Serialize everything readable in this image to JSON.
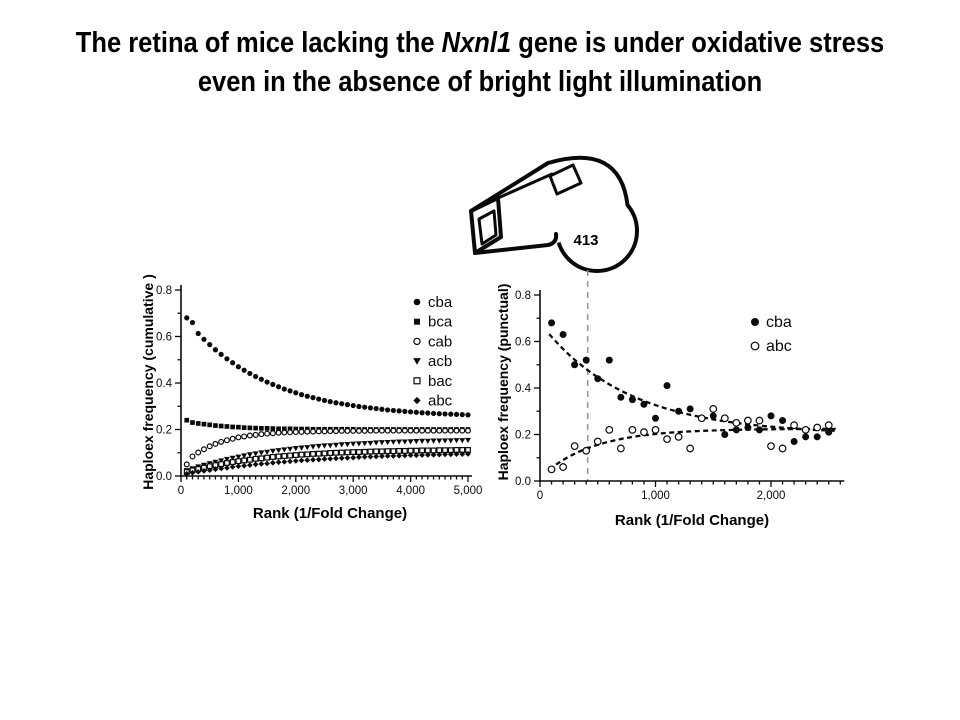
{
  "slide": {
    "title": {
      "pre_italic": "The retina of mice lacking the ",
      "italic": "Nxnl1",
      "post_italic": " gene is under oxidative stress",
      "line2": "even in the absence of bright light illumination"
    }
  },
  "whistle": {
    "label": "413"
  },
  "colors": {
    "ink": "#0a0a0a",
    "guide_line": "#9a9a9a",
    "background": "#ffffff"
  },
  "chart_data": [
    {
      "type": "scatter",
      "title": "",
      "xlabel": "Rank (1/Fold Change)",
      "ylabel": "Haploex frequency (cumulative )",
      "xlim": [
        0,
        5000
      ],
      "ylim": [
        0,
        0.8
      ],
      "grid": false,
      "legend_position": "upper right",
      "xticks": {
        "major": [
          0,
          1000,
          2000,
          3000,
          4000,
          5000
        ],
        "labels": [
          "0",
          "1,000",
          "2,000",
          "3,000",
          "4,000",
          "5,000"
        ],
        "minor_step": 100
      },
      "yticks": {
        "major": [
          0,
          0.2,
          0.4,
          0.6,
          0.8
        ],
        "labels": [
          "0.0",
          "0.2",
          "0.4",
          "0.6",
          "0.8"
        ],
        "minor_step": 0.1
      },
      "x_start": 100,
      "x_step": 100,
      "series": [
        {
          "name": "cba",
          "marker": "circle-filled",
          "values": [
            0.68,
            0.66,
            0.613,
            0.588,
            0.565,
            0.543,
            0.523,
            0.504,
            0.487,
            0.47,
            0.455,
            0.441,
            0.428,
            0.416,
            0.404,
            0.394,
            0.384,
            0.374,
            0.366,
            0.358,
            0.35,
            0.343,
            0.337,
            0.331,
            0.325,
            0.32,
            0.315,
            0.311,
            0.307,
            0.303,
            0.299,
            0.296,
            0.293,
            0.29,
            0.287,
            0.284,
            0.282,
            0.28,
            0.278,
            0.276,
            0.274,
            0.272,
            0.271,
            0.269,
            0.268,
            0.267,
            0.266,
            0.265,
            0.264,
            0.263
          ]
        },
        {
          "name": "bca",
          "marker": "square-filled",
          "values": [
            0.24,
            0.23,
            0.226,
            0.223,
            0.22,
            0.217,
            0.215,
            0.213,
            0.211,
            0.21,
            0.208,
            0.207,
            0.206,
            0.205,
            0.205,
            0.204,
            0.203,
            0.203,
            0.203,
            0.202,
            0.202,
            0.202,
            0.201,
            0.201,
            0.201,
            0.201,
            0.201,
            0.201,
            0.201,
            0.201,
            0.2,
            0.2,
            0.2,
            0.2,
            0.2,
            0.2,
            0.2,
            0.2,
            0.2,
            0.2,
            0.2,
            0.2,
            0.2,
            0.2,
            0.2,
            0.2,
            0.2,
            0.2,
            0.2,
            0.2
          ]
        },
        {
          "name": "cab",
          "marker": "circle-open",
          "values": [
            0.05,
            0.084,
            0.101,
            0.115,
            0.128,
            0.138,
            0.147,
            0.154,
            0.16,
            0.166,
            0.17,
            0.174,
            0.177,
            0.18,
            0.182,
            0.184,
            0.186,
            0.187,
            0.188,
            0.189,
            0.19,
            0.191,
            0.191,
            0.192,
            0.192,
            0.193,
            0.193,
            0.194,
            0.194,
            0.194,
            0.194,
            0.194,
            0.195,
            0.195,
            0.195,
            0.195,
            0.195,
            0.195,
            0.195,
            0.195,
            0.195,
            0.195,
            0.195,
            0.195,
            0.195,
            0.195,
            0.195,
            0.195,
            0.195,
            0.195
          ]
        },
        {
          "name": "acb",
          "marker": "triangle-down-filled",
          "values": [
            0.024,
            0.032,
            0.04,
            0.047,
            0.054,
            0.06,
            0.066,
            0.072,
            0.077,
            0.082,
            0.087,
            0.092,
            0.096,
            0.1,
            0.103,
            0.107,
            0.11,
            0.113,
            0.116,
            0.119,
            0.121,
            0.123,
            0.126,
            0.128,
            0.13,
            0.131,
            0.133,
            0.135,
            0.136,
            0.138,
            0.139,
            0.14,
            0.141,
            0.143,
            0.144,
            0.145,
            0.146,
            0.147,
            0.147,
            0.148,
            0.149,
            0.15,
            0.15,
            0.151,
            0.151,
            0.152,
            0.152,
            0.153,
            0.153,
            0.154
          ]
        },
        {
          "name": "bac",
          "marker": "square-open",
          "values": [
            0.017,
            0.024,
            0.03,
            0.036,
            0.042,
            0.047,
            0.051,
            0.056,
            0.06,
            0.064,
            0.067,
            0.07,
            0.074,
            0.076,
            0.079,
            0.082,
            0.084,
            0.086,
            0.088,
            0.09,
            0.092,
            0.093,
            0.095,
            0.096,
            0.097,
            0.099,
            0.1,
            0.101,
            0.102,
            0.103,
            0.103,
            0.104,
            0.105,
            0.106,
            0.106,
            0.107,
            0.107,
            0.108,
            0.108,
            0.109,
            0.109,
            0.11,
            0.11,
            0.11,
            0.111,
            0.111,
            0.111,
            0.112,
            0.112,
            0.112
          ]
        },
        {
          "name": "abc",
          "marker": "diamond-filled",
          "values": [
            0.009,
            0.014,
            0.018,
            0.022,
            0.025,
            0.029,
            0.032,
            0.035,
            0.039,
            0.042,
            0.044,
            0.047,
            0.05,
            0.052,
            0.054,
            0.057,
            0.059,
            0.061,
            0.063,
            0.065,
            0.067,
            0.068,
            0.07,
            0.071,
            0.073,
            0.074,
            0.076,
            0.077,
            0.078,
            0.079,
            0.081,
            0.082,
            0.083,
            0.084,
            0.085,
            0.086,
            0.086,
            0.087,
            0.088,
            0.089,
            0.089,
            0.09,
            0.091,
            0.091,
            0.092,
            0.093,
            0.093,
            0.094,
            0.094,
            0.095
          ]
        }
      ]
    },
    {
      "type": "scatter",
      "title": "",
      "xlabel": "Rank (1/Fold Change)",
      "ylabel": "Haploex frequency (punctual)",
      "xlim": [
        0,
        2600
      ],
      "ylim": [
        0,
        0.8
      ],
      "grid": false,
      "legend_position": "upper right",
      "xticks": {
        "major": [
          0,
          1000,
          2000
        ],
        "labels": [
          "0",
          "1,000",
          "2,000"
        ],
        "minor_step": 100
      },
      "yticks": {
        "major": [
          0,
          0.2,
          0.4,
          0.6,
          0.8
        ],
        "labels": [
          "0.0",
          "0.2",
          "0.4",
          "0.6",
          "0.8"
        ],
        "minor_step": 0.1
      },
      "x_start": 100,
      "x_step": 100,
      "series": [
        {
          "name": "cba",
          "marker": "circle-filled",
          "values": [
            0.68,
            0.63,
            0.5,
            0.52,
            0.44,
            0.52,
            0.36,
            0.35,
            0.33,
            0.27,
            0.41,
            0.3,
            0.31,
            0.27,
            0.28,
            0.2,
            0.22,
            0.23,
            0.22,
            0.28,
            0.26,
            0.17,
            0.19,
            0.19,
            0.21
          ]
        },
        {
          "name": "abc",
          "marker": "circle-open",
          "values": [
            0.05,
            0.06,
            0.15,
            0.13,
            0.17,
            0.22,
            0.14,
            0.22,
            0.21,
            0.22,
            0.18,
            0.19,
            0.14,
            0.27,
            0.31,
            0.27,
            0.25,
            0.26,
            0.26,
            0.15,
            0.14,
            0.24,
            0.22,
            0.23,
            0.24
          ]
        }
      ],
      "fit_curves": [
        {
          "series": "cba",
          "style": "dashed",
          "model": "exp",
          "y0": 0.2,
          "amp": 0.48,
          "tau": 750,
          "x_from": 80,
          "x_to": 2560
        },
        {
          "series": "abc",
          "style": "dashed",
          "model": "exp",
          "y0": 0.225,
          "amp": -0.21,
          "tau": 450,
          "x_from": 80,
          "x_to": 2560
        }
      ],
      "annotation": {
        "x": 413,
        "label": "413",
        "style": "vertical-dashed-gray"
      }
    }
  ]
}
